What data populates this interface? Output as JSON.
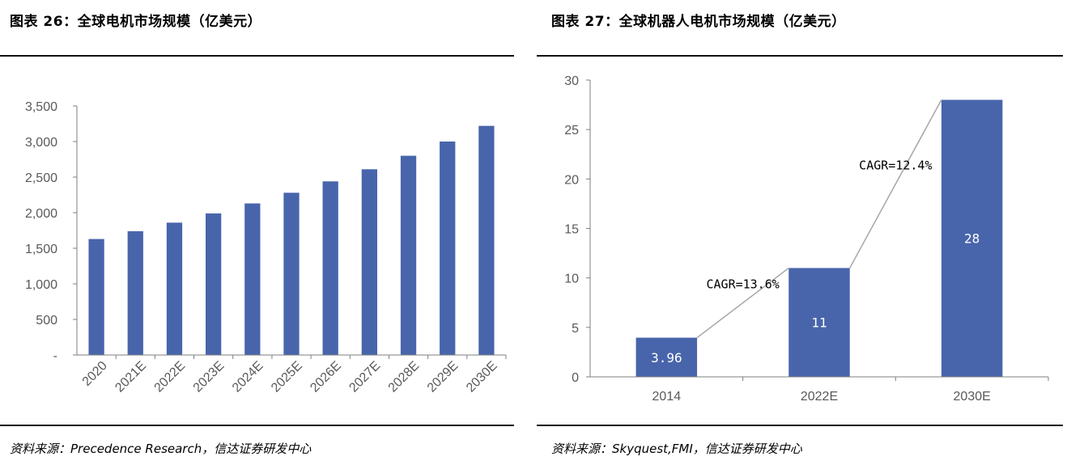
{
  "figures": [
    {
      "title": "图表 26：全球电机市场规模（亿美元）",
      "source": "资料来源：Precedence Research，信达证券研发中心"
    },
    {
      "title": "图表 27：全球机器人电机市场规模（亿美元）",
      "source": "资料来源：Skyquest,FMI，信达证券研发中心"
    }
  ],
  "colors": {
    "bar": "#4865ab",
    "axis": "#7f7f7f",
    "trend": "#a6a6a6"
  },
  "chart_data": [
    {
      "type": "bar",
      "title": "全球电机市场规模（亿美元）",
      "categories": [
        "2020",
        "2021E",
        "2022E",
        "2023E",
        "2024E",
        "2025E",
        "2026E",
        "2027E",
        "2028E",
        "2029E",
        "2030E"
      ],
      "values": [
        1630,
        1740,
        1860,
        1990,
        2130,
        2280,
        2440,
        2610,
        2800,
        3000,
        3220
      ],
      "ylim": [
        0,
        3500
      ],
      "yticks": [
        0,
        500,
        1000,
        1500,
        2000,
        2500,
        3000,
        3500
      ],
      "ytick_labels": [
        "-",
        "500",
        "1,000",
        "1,500",
        "2,000",
        "2,500",
        "3,000",
        "3,500"
      ],
      "xlabel": "",
      "ylabel": "",
      "grid": false,
      "legend": "none"
    },
    {
      "type": "bar",
      "title": "全球机器人电机市场规模（亿美元）",
      "categories": [
        "2014",
        "2022E",
        "2030E"
      ],
      "values": [
        3.96,
        11,
        28
      ],
      "data_labels": [
        "3.96",
        "11",
        "28"
      ],
      "ylim": [
        0,
        30
      ],
      "yticks": [
        0,
        5,
        10,
        15,
        20,
        25,
        30
      ],
      "ytick_labels": [
        "0",
        "5",
        "10",
        "15",
        "20",
        "25",
        "30"
      ],
      "annotations": [
        "CAGR=13.6%",
        "CAGR=12.4%"
      ],
      "xlabel": "",
      "ylabel": "",
      "grid": false,
      "legend": "none"
    }
  ]
}
